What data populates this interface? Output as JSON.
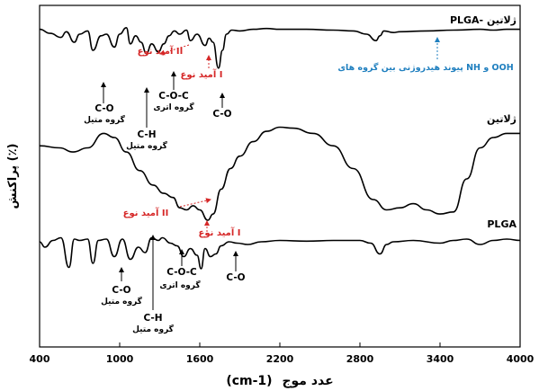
{
  "chart_data": {
    "type": "line",
    "x_axis": {
      "label_text": "عدد موج",
      "label_unit": "(cm-1)",
      "range": [
        400,
        4000
      ],
      "ticks": [
        400,
        1000,
        1600,
        2200,
        2800,
        3400,
        4000
      ],
      "tick_labels": [
        "400",
        "1000",
        "1600",
        "2200",
        "2800",
        "3400",
        "4000"
      ]
    },
    "y_axis": {
      "label": "پراکنش (٪)",
      "ticks_shown": false
    },
    "grid": false,
    "series": [
      {
        "name": "PLGA- ژلاتین",
        "points": [
          [
            400,
            0.86
          ],
          [
            480,
            0.81
          ],
          [
            560,
            0.76
          ],
          [
            600,
            0.83
          ],
          [
            660,
            0.7
          ],
          [
            700,
            0.8
          ],
          [
            760,
            0.84
          ],
          [
            800,
            0.6
          ],
          [
            860,
            0.78
          ],
          [
            900,
            0.8
          ],
          [
            960,
            0.64
          ],
          [
            1000,
            0.8
          ],
          [
            1050,
            0.88
          ],
          [
            1080,
            0.68
          ],
          [
            1120,
            0.78
          ],
          [
            1160,
            0.7
          ],
          [
            1200,
            0.56
          ],
          [
            1240,
            0.68
          ],
          [
            1290,
            0.58
          ],
          [
            1330,
            0.68
          ],
          [
            1370,
            0.78
          ],
          [
            1410,
            0.84
          ],
          [
            1450,
            0.8
          ],
          [
            1500,
            0.85
          ],
          [
            1530,
            0.72
          ],
          [
            1580,
            0.8
          ],
          [
            1640,
            0.66
          ],
          [
            1670,
            0.75
          ],
          [
            1700,
            0.7
          ],
          [
            1740,
            0.38
          ],
          [
            1770,
            0.6
          ],
          [
            1800,
            0.8
          ],
          [
            1840,
            0.85
          ],
          [
            1900,
            0.84
          ],
          [
            2000,
            0.86
          ],
          [
            2100,
            0.87
          ],
          [
            2200,
            0.86
          ],
          [
            2400,
            0.86
          ],
          [
            2600,
            0.85
          ],
          [
            2750,
            0.84
          ],
          [
            2850,
            0.8
          ],
          [
            2920,
            0.72
          ],
          [
            2950,
            0.78
          ],
          [
            2980,
            0.84
          ],
          [
            3050,
            0.82
          ],
          [
            3100,
            0.83
          ],
          [
            3300,
            0.84
          ],
          [
            3500,
            0.85
          ],
          [
            3700,
            0.86
          ],
          [
            3800,
            0.85
          ],
          [
            3900,
            0.86
          ],
          [
            4000,
            0.86
          ]
        ]
      },
      {
        "name": "ژلاتین",
        "points": [
          [
            400,
            0.72
          ],
          [
            550,
            0.7
          ],
          [
            650,
            0.66
          ],
          [
            760,
            0.7
          ],
          [
            880,
            0.84
          ],
          [
            960,
            0.8
          ],
          [
            1050,
            0.66
          ],
          [
            1150,
            0.48
          ],
          [
            1250,
            0.34
          ],
          [
            1330,
            0.26
          ],
          [
            1400,
            0.22
          ],
          [
            1450,
            0.12
          ],
          [
            1500,
            0.1
          ],
          [
            1550,
            0.14
          ],
          [
            1600,
            0.1
          ],
          [
            1660,
            0.0
          ],
          [
            1700,
            0.06
          ],
          [
            1760,
            0.3
          ],
          [
            1830,
            0.5
          ],
          [
            1900,
            0.62
          ],
          [
            2000,
            0.76
          ],
          [
            2100,
            0.86
          ],
          [
            2200,
            0.9
          ],
          [
            2300,
            0.89
          ],
          [
            2450,
            0.84
          ],
          [
            2600,
            0.72
          ],
          [
            2750,
            0.5
          ],
          [
            2900,
            0.2
          ],
          [
            3000,
            0.1
          ],
          [
            3100,
            0.12
          ],
          [
            3200,
            0.16
          ],
          [
            3300,
            0.1
          ],
          [
            3400,
            0.06
          ],
          [
            3500,
            0.08
          ],
          [
            3600,
            0.4
          ],
          [
            3700,
            0.7
          ],
          [
            3800,
            0.8
          ],
          [
            3900,
            0.84
          ],
          [
            4000,
            0.84
          ]
        ]
      },
      {
        "name": "PLGA",
        "points": [
          [
            400,
            0.68
          ],
          [
            440,
            0.6
          ],
          [
            500,
            0.7
          ],
          [
            560,
            0.74
          ],
          [
            620,
            0.3
          ],
          [
            660,
            0.72
          ],
          [
            700,
            0.7
          ],
          [
            760,
            0.72
          ],
          [
            800,
            0.36
          ],
          [
            840,
            0.7
          ],
          [
            900,
            0.72
          ],
          [
            960,
            0.46
          ],
          [
            1020,
            0.72
          ],
          [
            1080,
            0.42
          ],
          [
            1140,
            0.6
          ],
          [
            1190,
            0.52
          ],
          [
            1240,
            0.74
          ],
          [
            1290,
            0.7
          ],
          [
            1320,
            0.74
          ],
          [
            1380,
            0.66
          ],
          [
            1430,
            0.62
          ],
          [
            1480,
            0.46
          ],
          [
            1530,
            0.58
          ],
          [
            1580,
            0.48
          ],
          [
            1610,
            0.28
          ],
          [
            1640,
            0.58
          ],
          [
            1680,
            0.46
          ],
          [
            1720,
            0.5
          ],
          [
            1760,
            0.62
          ],
          [
            1820,
            0.68
          ],
          [
            1880,
            0.66
          ],
          [
            1960,
            0.64
          ],
          [
            2060,
            0.68
          ],
          [
            2200,
            0.7
          ],
          [
            2400,
            0.69
          ],
          [
            2600,
            0.7
          ],
          [
            2800,
            0.7
          ],
          [
            2880,
            0.66
          ],
          [
            2950,
            0.5
          ],
          [
            3000,
            0.64
          ],
          [
            3050,
            0.68
          ],
          [
            3200,
            0.7
          ],
          [
            3400,
            0.66
          ],
          [
            3500,
            0.7
          ],
          [
            3600,
            0.72
          ],
          [
            3700,
            0.64
          ],
          [
            3800,
            0.7
          ],
          [
            3900,
            0.72
          ],
          [
            4000,
            0.7
          ]
        ]
      }
    ],
    "series_labels": [
      "PLGA- ژلاتین",
      "ژلاتین",
      "PLGA"
    ],
    "annotations": {
      "top": {
        "co_1": "C-O",
        "co_1_sub": "گروه متیل",
        "ch": "C-H",
        "ch_sub": "گروه متیل",
        "coc": "C-O-C",
        "coc_sub": "گروه اتری",
        "co_2": "C-O",
        "amide2": "آمید نوع II",
        "amide1": "آمید نوع I",
        "hbond": "پیوند هیدروژنی بین گروه های NH و OOH"
      },
      "bottom": {
        "amide2": "آمید نوع II",
        "amide1": "آمید نوع I",
        "co_1": "C-O",
        "co_1_sub": "گروه متیل",
        "ch": "C-H",
        "ch_sub": "گروه متیل",
        "coc": "C-O-C",
        "coc_sub": "گروه اتری",
        "co_2": "C-O"
      }
    },
    "colors": {
      "line": "#000000",
      "amide_annotation": "#d62828",
      "hbond_annotation": "#1f7fbf"
    }
  }
}
